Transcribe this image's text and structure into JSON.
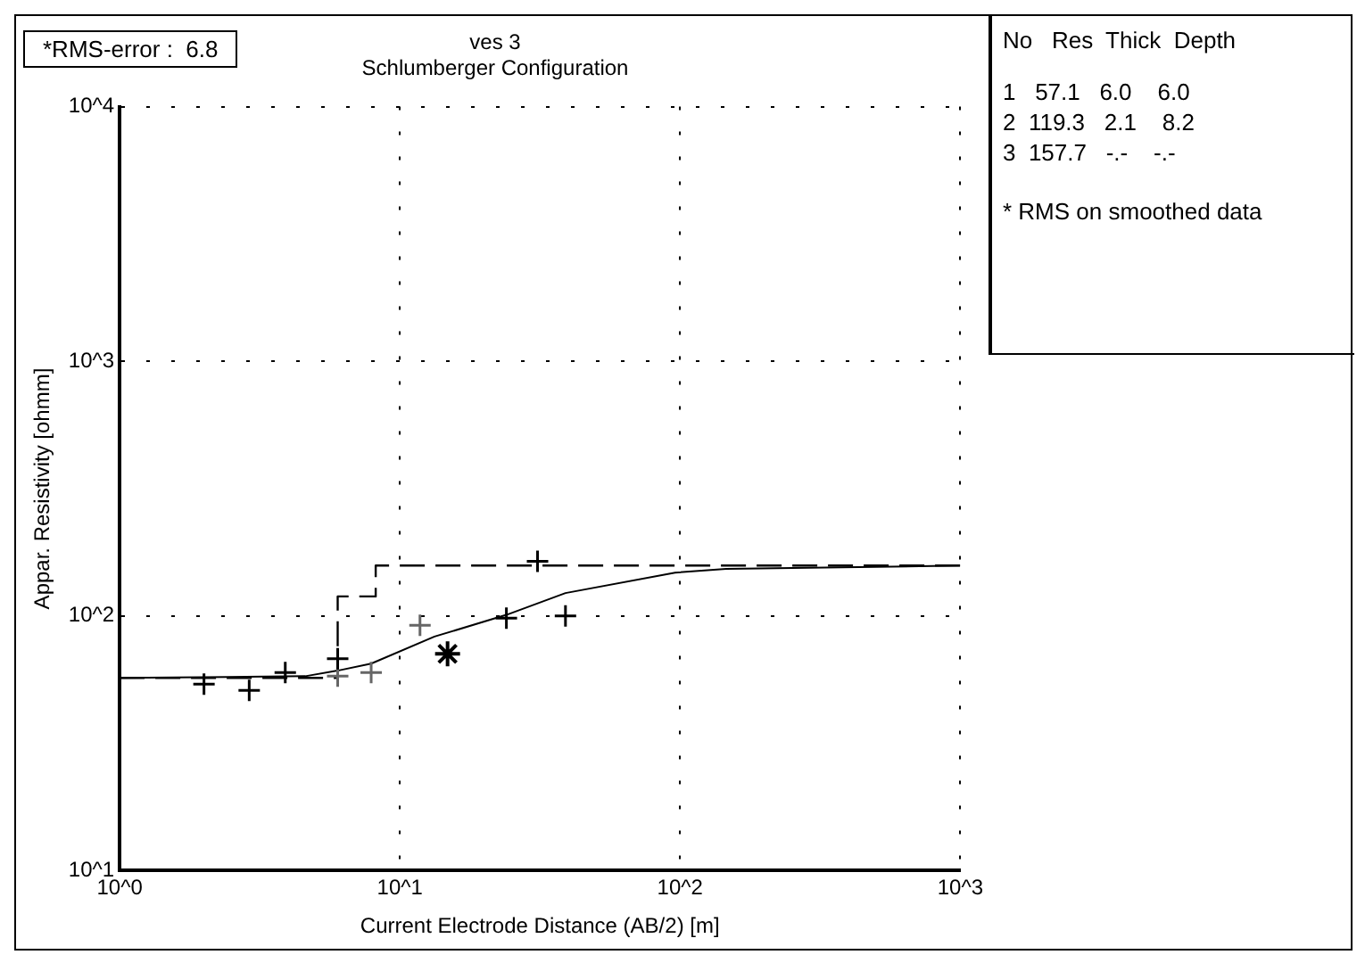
{
  "chart_data": {
    "type": "scatter",
    "title": "ves 3",
    "subtitle": "Schlumberger Configuration",
    "xlabel": "Current Electrode Distance (AB/2) [m]",
    "ylabel": "Appar. Resistivity [ohmm]",
    "log": "xy",
    "xlim": [
      1,
      1000
    ],
    "ylim": [
      10,
      10000
    ],
    "xticks": [
      {
        "value": 1,
        "label": "10^0"
      },
      {
        "value": 10,
        "label": "10^1"
      },
      {
        "value": 100,
        "label": "10^2"
      },
      {
        "value": 1000,
        "label": "10^3"
      }
    ],
    "yticks": [
      {
        "value": 10,
        "label": "10^1"
      },
      {
        "value": 100,
        "label": "10^2"
      },
      {
        "value": 1000,
        "label": "10^3"
      },
      {
        "value": 10000,
        "label": "10^4"
      }
    ],
    "grid": true,
    "legend": false,
    "series": [
      {
        "marker": "cross",
        "color": "#000000",
        "x": [
          2.0,
          2.9,
          3.9,
          6.0,
          24,
          31,
          39
        ],
        "values": [
          54,
          51,
          60,
          68,
          98,
          164,
          100
        ]
      },
      {
        "marker": "cross",
        "color": "#666666",
        "x": [
          6.0,
          7.9,
          11.8
        ],
        "values": [
          58,
          60,
          92
        ]
      },
      {
        "color": "#000000",
        "x": [
          14.8
        ],
        "values": [
          71
        ]
      },
      {
        "type": "line",
        "marker": "none",
        "line_style": "solid",
        "color": "#000000",
        "x": [
          1,
          4.6,
          6.0,
          7.9,
          13.3,
          24,
          39,
          96,
          146,
          1000
        ],
        "values": [
          57.1,
          58,
          61,
          65,
          83,
          101,
          123,
          148,
          153,
          157.7
        ]
      },
      {
        "type": "step",
        "marker": "none",
        "line_style": "dashed",
        "color": "#000000",
        "x": [
          1,
          6.0,
          8.2,
          1000
        ],
        "values": [
          57.1,
          119.3,
          157.7,
          157.7
        ]
      }
    ],
    "annotations": [
      "*RMS-error :  6.8",
      "No   Res  Thick  Depth",
      "1   57.1   6.0    6.0",
      "2  119.3   2.1    8.2",
      "3  157.7   -.-    -.-",
      "* RMS on smoothed data"
    ]
  }
}
